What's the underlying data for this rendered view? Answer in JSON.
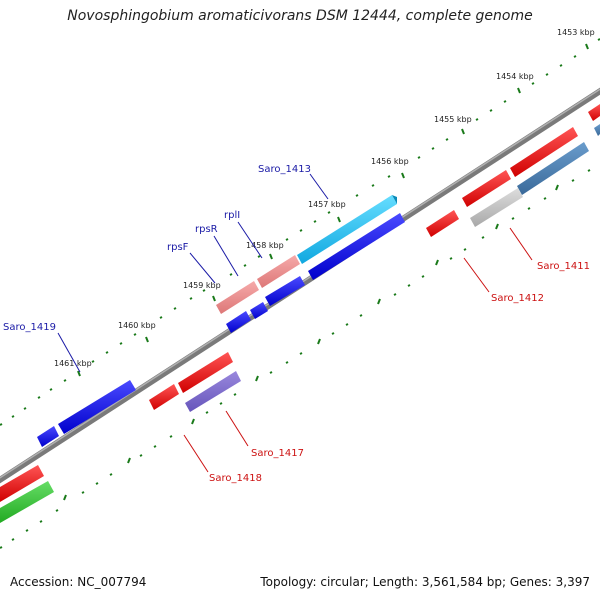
{
  "title": "Novosphingobium aromaticivorans DSM 12444, complete genome",
  "footer": {
    "accession": "Accession: NC_007794",
    "summary": "Topology: circular; Length: 3,561,584 bp; Genes: 3,397"
  },
  "scale_labels": [
    "1453 kbp",
    "1454 kbp",
    "1455 kbp",
    "1456 kbp",
    "1457 kbp",
    "1458 kbp",
    "1459 kbp",
    "1460 kbp",
    "1461 kbp"
  ],
  "gene_labels_top": [
    "Saro_1413",
    "rplI",
    "rpsR",
    "rpsF",
    "Saro_1419"
  ],
  "gene_labels_bottom": [
    "Saro_1411",
    "Saro_1412",
    "Saro_1417",
    "Saro_1418"
  ],
  "colors": {
    "backbone": "#7a7a7a",
    "ticks": "#1a7a1a",
    "blue": "#0a0ae6",
    "light_blue": "#19b4ea",
    "pink": "#e88a8a",
    "red": "#ee1111",
    "grey": "#b9b9b9",
    "steel": "#4a7fb0",
    "purple": "#7a66cc",
    "green": "#33bb33"
  }
}
